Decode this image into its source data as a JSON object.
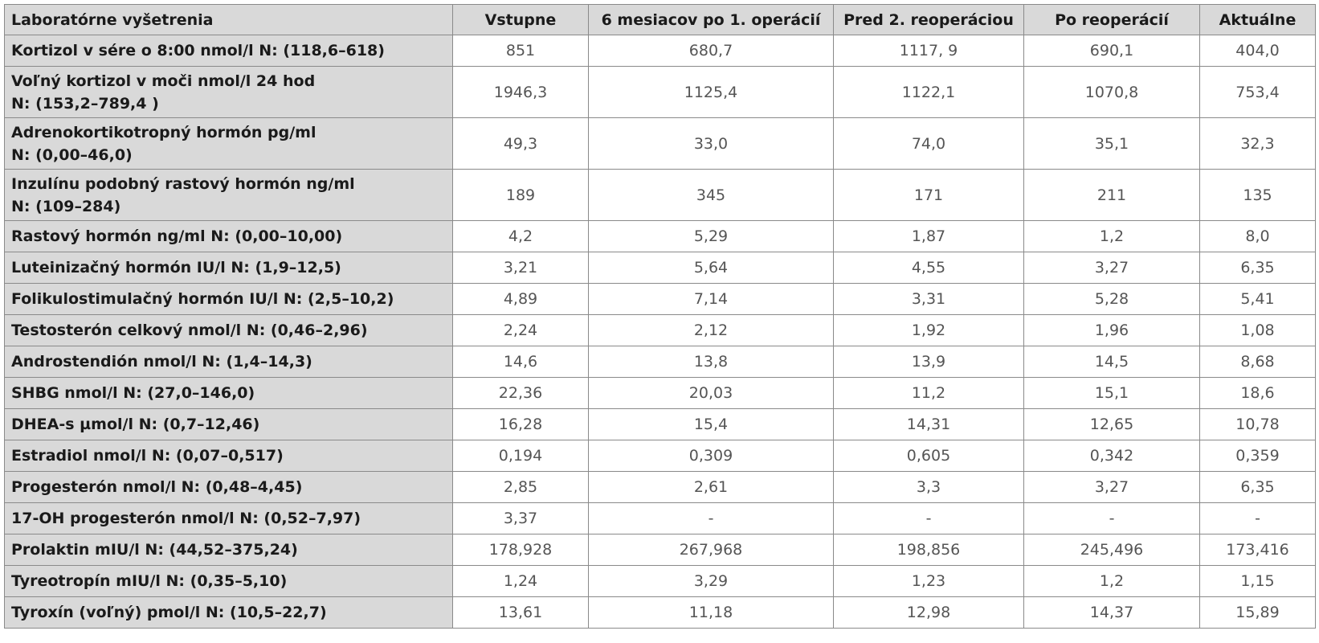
{
  "table": {
    "header": [
      "Laboratórne vyšetrenia",
      "Vstupne",
      "6 mesiacov po 1. operácií",
      "Pred 2. reoperáciou",
      "Po reoperácií",
      "Aktuálne"
    ],
    "rows": [
      [
        "Kortizol v sére o 8:00 nmol/l N: (118,6–618)",
        "851",
        "680,7",
        "1117, 9",
        "690,1",
        "404,0"
      ],
      [
        "Voľný kortizol v moči nmol/l 24 hod\n N: (153,2–789,4 )",
        "1946,3",
        "1125,4",
        "1122,1",
        "1070,8",
        "753,4"
      ],
      [
        "Adrenokortikotropný hormón pg/ml\nN: (0,00–46,0)",
        "49,3",
        "33,0",
        "74,0",
        "35,1",
        "32,3"
      ],
      [
        "Inzulínu podobný rastový hormón ng/ml\nN: (109–284)",
        "189",
        "345",
        "171",
        "211",
        "135"
      ],
      [
        "Rastový hormón ng/ml N: (0,00–10,00)",
        "4,2",
        "5,29",
        "1,87",
        "1,2",
        "8,0"
      ],
      [
        "Luteinizačný hormón IU/l N: (1,9–12,5)",
        "3,21",
        "5,64",
        "4,55",
        "3,27",
        "6,35"
      ],
      [
        "Folikulostimulačný hormón IU/l N: (2,5–10,2)",
        "4,89",
        "7,14",
        "3,31",
        "5,28",
        "5,41"
      ],
      [
        "Testosterón celkový nmol/l N: (0,46–2,96)",
        "2,24",
        "2,12",
        "1,92",
        "1,96",
        "1,08"
      ],
      [
        "Androstendión nmol/l N: (1,4–14,3)",
        "14,6",
        "13,8",
        "13,9",
        "14,5",
        "8,68"
      ],
      [
        "SHBG nmol/l N: (27,0–146,0)",
        "22,36",
        "20,03",
        "11,2",
        "15,1",
        "18,6"
      ],
      [
        "DHEA-s µmol/l N: (0,7–12,46)",
        "16,28",
        "15,4",
        "14,31",
        "12,65",
        "10,78"
      ],
      [
        "Estradiol nmol/l N: (0,07–0,517)",
        "0,194",
        "0,309",
        "0,605",
        "0,342",
        "0,359"
      ],
      [
        "Progesterón nmol/l N: (0,48–4,45)",
        "2,85",
        "2,61",
        "3,3",
        "3,27",
        "6,35"
      ],
      [
        "17-OH progesterón nmol/l N: (0,52–7,97)",
        "3,37",
        "-",
        "-",
        "-",
        "-"
      ],
      [
        "Prolaktin mIU/l N: (44,52–375,24)",
        "178,928",
        "267,968",
        "198,856",
        "245,496",
        "173,416"
      ],
      [
        "Tyreotropín mIU/l N: (0,35–5,10)",
        "1,24",
        "3,29",
        "1,23",
        "1,2",
        "1,15"
      ],
      [
        "Tyroxín (voľný) pmol/l N: (10,5–22,7)",
        "13,61",
        "11,18",
        "12,98",
        "14,37",
        "15,89"
      ]
    ]
  }
}
